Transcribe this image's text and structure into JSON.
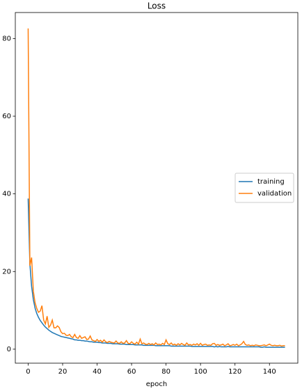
{
  "chart_data": {
    "type": "line",
    "title": "Loss",
    "x_label": "epoch",
    "x": [
      0,
      1,
      2,
      3,
      4,
      5,
      6,
      7,
      8,
      9,
      10,
      11,
      12,
      13,
      14,
      15,
      16,
      17,
      18,
      19,
      20,
      21,
      22,
      23,
      24,
      25,
      26,
      27,
      28,
      29,
      30,
      31,
      32,
      33,
      34,
      35,
      36,
      37,
      38,
      39,
      40,
      41,
      42,
      43,
      44,
      45,
      46,
      47,
      48,
      49,
      50,
      51,
      52,
      53,
      54,
      55,
      56,
      57,
      58,
      59,
      60,
      61,
      62,
      63,
      64,
      65,
      66,
      67,
      68,
      69,
      70,
      71,
      72,
      73,
      74,
      75,
      76,
      77,
      78,
      79,
      80,
      81,
      82,
      83,
      84,
      85,
      86,
      87,
      88,
      89,
      90,
      91,
      92,
      93,
      94,
      95,
      96,
      97,
      98,
      99,
      100,
      101,
      102,
      103,
      104,
      105,
      106,
      107,
      108,
      109,
      110,
      111,
      112,
      113,
      114,
      115,
      116,
      117,
      118,
      119,
      120,
      121,
      122,
      123,
      124,
      125,
      126,
      127,
      128,
      129,
      130,
      131,
      132,
      133,
      134,
      135,
      136,
      137,
      138,
      139,
      140,
      141,
      142,
      143,
      144,
      145,
      146,
      147,
      148,
      149
    ],
    "series": [
      {
        "name": "training",
        "color": "#1f77b4",
        "values": [
          38.8,
          22.0,
          16.2,
          12.8,
          10.6,
          9.2,
          8.2,
          7.4,
          6.8,
          6.2,
          5.7,
          5.3,
          4.9,
          4.6,
          4.3,
          4.1,
          3.9,
          3.7,
          3.5,
          3.3,
          3.2,
          3.1,
          3.0,
          2.9,
          2.8,
          2.7,
          2.6,
          2.4,
          2.4,
          2.3,
          2.3,
          2.2,
          2.2,
          2.1,
          2.1,
          2.0,
          1.9,
          1.9,
          1.8,
          1.8,
          1.8,
          1.7,
          1.7,
          1.6,
          1.6,
          1.6,
          1.5,
          1.5,
          1.5,
          1.4,
          1.4,
          1.4,
          1.4,
          1.3,
          1.3,
          1.3,
          1.3,
          1.2,
          1.2,
          1.2,
          1.2,
          1.2,
          1.1,
          1.1,
          1.1,
          1.1,
          1.1,
          1.0,
          1.0,
          1.0,
          1.0,
          1.0,
          1.0,
          1.0,
          0.9,
          0.9,
          0.9,
          0.9,
          0.9,
          0.9,
          0.9,
          0.9,
          0.9,
          0.8,
          0.8,
          0.8,
          0.8,
          0.8,
          0.8,
          0.8,
          0.8,
          0.8,
          0.8,
          0.8,
          0.8,
          0.7,
          0.7,
          0.7,
          0.7,
          0.7,
          0.7,
          0.7,
          0.7,
          0.7,
          0.7,
          0.7,
          0.7,
          0.7,
          0.6,
          0.7,
          0.6,
          0.7,
          0.6,
          0.6,
          0.6,
          0.6,
          0.7,
          0.6,
          0.6,
          0.6,
          0.6,
          0.6,
          0.6,
          0.6,
          0.6,
          0.6,
          0.6,
          0.6,
          0.6,
          0.6,
          0.6,
          0.6,
          0.6,
          0.6,
          0.6,
          0.5,
          0.5,
          0.6,
          0.5,
          0.5,
          0.5,
          0.5,
          0.5,
          0.5,
          0.5,
          0.5,
          0.5,
          0.5,
          0.5,
          0.5
        ]
      },
      {
        "name": "validation",
        "color": "#ff7f0e",
        "values": [
          82.6,
          21.5,
          23.6,
          15.0,
          12.0,
          10.5,
          9.5,
          9.8,
          11.2,
          7.5,
          6.5,
          8.5,
          5.6,
          6.2,
          7.5,
          5.5,
          5.5,
          6.0,
          5.6,
          4.5,
          4.0,
          4.1,
          3.6,
          3.5,
          3.8,
          3.2,
          3.0,
          3.8,
          3.0,
          2.8,
          3.5,
          2.8,
          3.0,
          3.2,
          2.5,
          2.6,
          3.4,
          2.4,
          2.2,
          2.0,
          2.5,
          2.0,
          2.3,
          1.8,
          2.4,
          1.9,
          1.7,
          2.0,
          1.8,
          1.7,
          1.6,
          2.1,
          1.6,
          1.5,
          1.9,
          1.5,
          1.6,
          2.2,
          1.5,
          1.4,
          1.9,
          1.5,
          1.3,
          1.8,
          1.3,
          2.6,
          1.4,
          1.6,
          1.3,
          1.2,
          1.5,
          1.2,
          1.4,
          1.1,
          1.6,
          1.2,
          1.3,
          1.1,
          1.5,
          1.2,
          2.4,
          1.4,
          1.2,
          1.6,
          1.1,
          1.3,
          1.0,
          1.4,
          1.1,
          1.5,
          1.2,
          1.0,
          1.6,
          1.1,
          1.2,
          1.0,
          1.3,
          1.1,
          1.4,
          1.0,
          1.5,
          1.0,
          1.2,
          1.3,
          1.0,
          1.1,
          1.0,
          1.4,
          1.5,
          1.0,
          1.2,
          1.0,
          1.1,
          1.3,
          0.9,
          1.1,
          1.4,
          0.9,
          1.0,
          1.2,
          1.0,
          1.3,
          0.9,
          1.1,
          1.4,
          2.0,
          1.2,
          1.0,
          1.1,
          0.9,
          1.0,
          0.9,
          1.1,
          1.0,
          0.9,
          0.9,
          1.0,
          1.1,
          0.9,
          1.1,
          1.3,
          1.0,
          0.9,
          1.0,
          0.9,
          0.9,
          1.0,
          0.8,
          0.9,
          0.9
        ]
      }
    ],
    "xlim": [
      -7.45,
      156.45
    ],
    "ylim": [
      -3.6,
      86.7
    ],
    "xticks": [
      0,
      20,
      40,
      60,
      80,
      100,
      120,
      140
    ],
    "yticks": [
      0,
      20,
      40,
      60,
      80
    ],
    "legend": "center right"
  }
}
